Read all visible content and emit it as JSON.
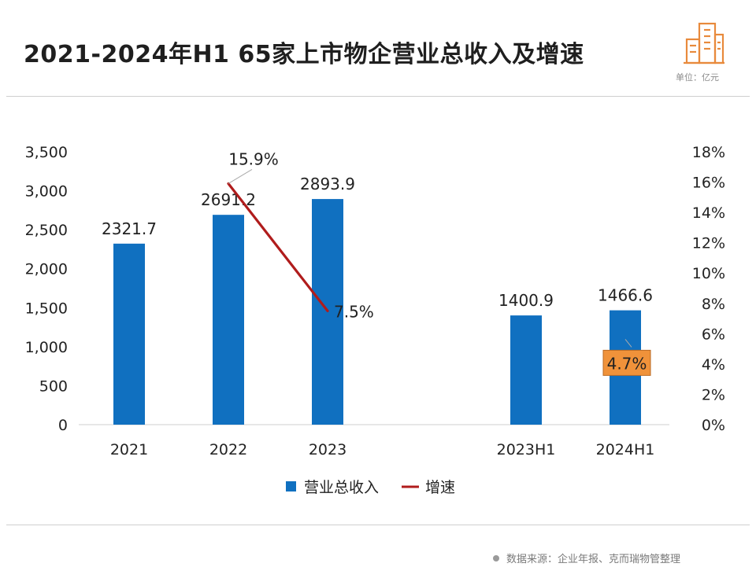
{
  "header": {
    "title": "2021-2024年H1 65家上市物企营业总收入及增速",
    "unit": "单位：亿元",
    "logo_icon": "building-icon"
  },
  "footer": {
    "source": "数据来源：企业年报、克而瑞物管整理"
  },
  "chart_data": {
    "type": "bar",
    "categories": [
      "2021",
      "2022",
      "2023",
      "2023H1",
      "2024H1"
    ],
    "series": [
      {
        "name": "营业总收入",
        "type": "bar",
        "axis": "left",
        "color": "#1070c0",
        "values": [
          2321.7,
          2691.2,
          2893.9,
          1400.9,
          1466.6
        ],
        "labels": [
          "2321.7",
          "2691.2",
          "2893.9",
          "1400.9",
          "1466.6"
        ]
      },
      {
        "name": "增速",
        "type": "line",
        "axis": "right",
        "color": "#b01c1c",
        "points": [
          {
            "category": "2022",
            "value": 15.9,
            "label": "15.9%"
          },
          {
            "category": "2023",
            "value": 7.5,
            "label": "7.5%"
          },
          {
            "category": "2024H1",
            "value": 4.7,
            "label": "4.7%",
            "highlight": "#f0923a"
          }
        ]
      }
    ],
    "y_left": {
      "range": [
        0,
        3500
      ],
      "ticks": [
        "0",
        "500",
        "1,000",
        "1,500",
        "2,000",
        "2,500",
        "3,000",
        "3,500"
      ]
    },
    "y_right": {
      "range": [
        0,
        18
      ],
      "ticks": [
        "0%",
        "2%",
        "4%",
        "6%",
        "8%",
        "10%",
        "12%",
        "14%",
        "16%",
        "18%"
      ]
    },
    "grid": false,
    "legend": {
      "position": "bottom",
      "entries": [
        {
          "name": "营业总收入",
          "symbol": "square",
          "color": "#1070c0"
        },
        {
          "name": "增速",
          "symbol": "line",
          "color": "#b01c1c"
        }
      ]
    }
  }
}
